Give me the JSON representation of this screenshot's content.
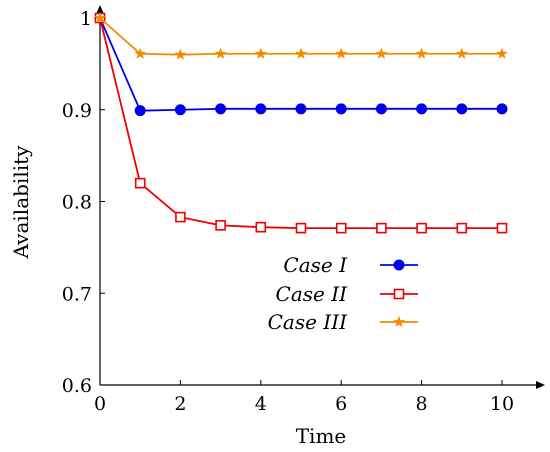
{
  "chart_data": {
    "type": "line",
    "title": "",
    "xlabel": "Time",
    "ylabel": "Availability",
    "xlim": [
      0,
      11
    ],
    "ylim": [
      0.6,
      1.0
    ],
    "xticks": [
      0,
      2,
      4,
      6,
      8,
      10
    ],
    "yticks": [
      0.6,
      0.7,
      0.8,
      0.9,
      1.0
    ],
    "xtick_labels": [
      "0",
      "2",
      "4",
      "6",
      "8",
      "10"
    ],
    "ytick_labels": [
      "0.6",
      "0.7",
      "0.8",
      "0.9",
      "1"
    ],
    "grid": false,
    "legend_position": "center-right",
    "x": [
      0,
      1,
      2,
      3,
      4,
      5,
      6,
      7,
      8,
      9,
      10
    ],
    "series": [
      {
        "name": "Case I",
        "color": "#0000ee",
        "marker": "filled-circle",
        "values": [
          1.0,
          0.899,
          0.9,
          0.901,
          0.901,
          0.901,
          0.901,
          0.901,
          0.901,
          0.901,
          0.901
        ]
      },
      {
        "name": "Case II",
        "color": "#ee0000",
        "marker": "open-square",
        "values": [
          1.0,
          0.82,
          0.783,
          0.774,
          0.772,
          0.771,
          0.771,
          0.771,
          0.771,
          0.771,
          0.771
        ]
      },
      {
        "name": "Case III",
        "color": "#f08c00",
        "marker": "star",
        "values": [
          1.0,
          0.961,
          0.96,
          0.961,
          0.961,
          0.961,
          0.961,
          0.961,
          0.961,
          0.961,
          0.961
        ]
      }
    ]
  }
}
